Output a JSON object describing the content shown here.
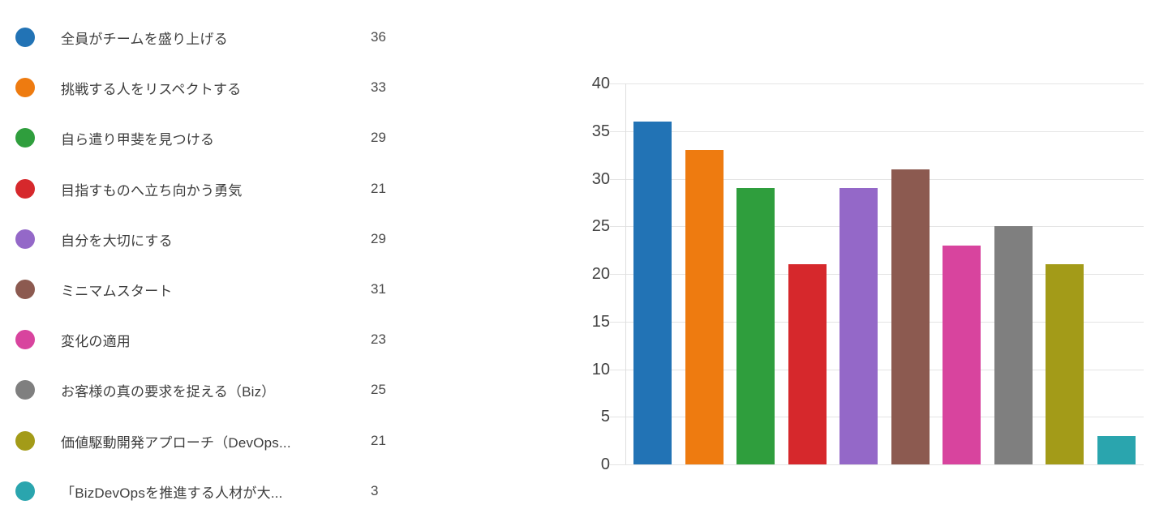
{
  "legend": {
    "items": [
      {
        "label": "全員がチームを盛り上げる",
        "count": "36",
        "color": "#2273b5",
        "icon": "circle"
      },
      {
        "label": "挑戦する人をリスペクトする",
        "count": "33",
        "color": "#ee7b10",
        "icon": "circle"
      },
      {
        "label": "自ら遣り甲斐を見つける",
        "count": "29",
        "color": "#2f9e3d",
        "icon": "circle"
      },
      {
        "label": "目指すものへ立ち向かう勇気",
        "count": "21",
        "color": "#d6282c",
        "icon": "circle"
      },
      {
        "label": "自分を大切にする",
        "count": "29",
        "color": "#9468c8",
        "icon": "circle"
      },
      {
        "label": "ミニマムスタート",
        "count": "31",
        "color": "#8c5a50",
        "icon": "circle"
      },
      {
        "label": "変化の適用",
        "count": "23",
        "color": "#d8449e",
        "icon": "circle"
      },
      {
        "label": "お客様の真の要求を捉える（Biz）",
        "count": "25",
        "color": "#7f7f7f",
        "icon": "circle"
      },
      {
        "label": "価値駆動開発アプローチ（DevOps...",
        "count": "21",
        "color": "#a39b18",
        "icon": "circle"
      },
      {
        "label": "「BizDevOpsを推進する人材が大...",
        "count": "3",
        "color": "#2aa5ae",
        "icon": "circle"
      }
    ]
  },
  "chart_data": {
    "type": "bar",
    "categories": [
      "全員がチームを盛り上げる",
      "挑戦する人をリスペクトする",
      "自ら遣り甲斐を見つける",
      "目指すものへ立ち向かう勇気",
      "自分を大切にする",
      "ミニマムスタート",
      "変化の適用",
      "お客様の真の要求を捉える（Biz）",
      "価値駆動開発アプローチ（DevOps...",
      "「BizDevOpsを推進する人材が大..."
    ],
    "values": [
      36,
      33,
      29,
      21,
      29,
      31,
      23,
      25,
      21,
      3
    ],
    "colors": [
      "#2273b5",
      "#ee7b10",
      "#2f9e3d",
      "#d6282c",
      "#9468c8",
      "#8c5a50",
      "#d8449e",
      "#7f7f7f",
      "#a39b18",
      "#2aa5ae"
    ],
    "ylim": [
      0,
      40
    ],
    "yticks": [
      0,
      5,
      10,
      15,
      20,
      25,
      30,
      35,
      40
    ],
    "grid": true,
    "legend_position": "left",
    "x_axis_labels_visible": false,
    "gridline_color": "#e4e4e4",
    "axis_label_color": "#424242"
  }
}
